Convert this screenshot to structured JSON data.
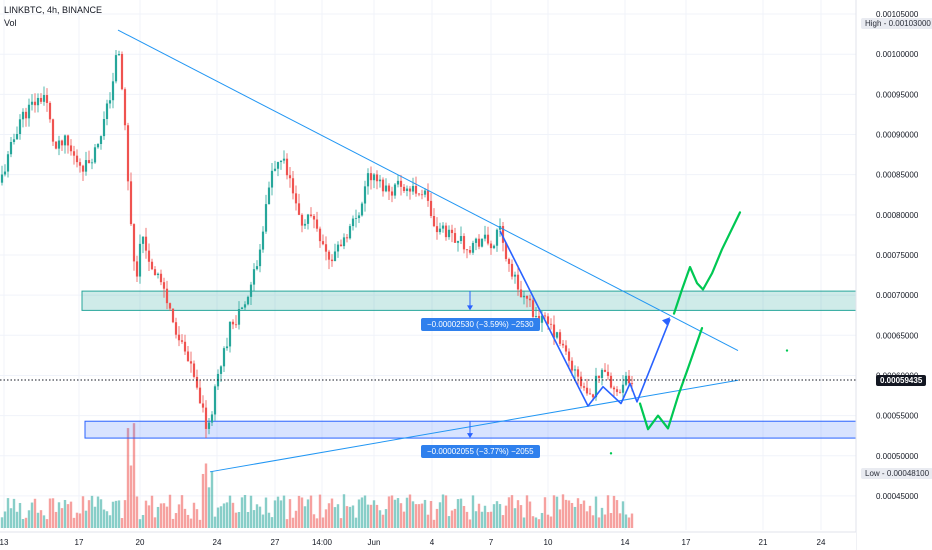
{
  "header": {
    "symbol_line": "LINKBTC, 4h, BINANCE",
    "volume_label": "Vol"
  },
  "price_axis": {
    "ticks": [
      "0.00105000",
      "0.00100000",
      "0.00095000",
      "0.00090000",
      "0.00085000",
      "0.00080000",
      "0.00075000",
      "0.00070000",
      "0.00065000",
      "0.00060000",
      "0.00055000",
      "0.00050000",
      "0.00045000"
    ],
    "high_label": "High",
    "high_value": "0.00103000",
    "low_label": "Low",
    "low_value": "0.00048100",
    "current_value": "0.00059435"
  },
  "time_axis": {
    "labels": [
      "13",
      "17",
      "20",
      "24",
      "27",
      "14:00",
      "Jun",
      "4",
      "7",
      "10",
      "14",
      "17",
      "21",
      "24"
    ]
  },
  "measurements": {
    "upper": "−0.00002530 (−3.59%) −2530",
    "lower": "−0.00002055 (−3.77%) −2055"
  },
  "colors": {
    "up": "#26a69a",
    "down": "#ef5350",
    "trend_line": "#2196f3",
    "resistance_zone": "#26a69a",
    "support_zone": "#2962ff",
    "projection_blue": "#2962ff",
    "projection_green": "#00c853"
  },
  "chart_data": {
    "type": "candlestick",
    "symbol": "LINKBTC",
    "interval": "4h",
    "exchange": "BINANCE",
    "ylim": [
      0.00042,
      0.00106
    ],
    "high": 0.00103,
    "low": 0.000481,
    "last": 0.00059435,
    "price_path": [
      [
        0,
        0.00084
      ],
      [
        8,
        0.00087
      ],
      [
        20,
        0.00092
      ],
      [
        35,
        0.00094
      ],
      [
        45,
        0.00095
      ],
      [
        55,
        0.00088
      ],
      [
        65,
        0.00089
      ],
      [
        75,
        0.00087
      ],
      [
        85,
        0.00086
      ],
      [
        95,
        0.00088
      ],
      [
        105,
        0.00092
      ],
      [
        112,
        0.00096
      ],
      [
        118,
        0.00101
      ],
      [
        124,
        0.00093
      ],
      [
        130,
        0.0008
      ],
      [
        136,
        0.00072
      ],
      [
        142,
        0.00078
      ],
      [
        150,
        0.00074
      ],
      [
        160,
        0.00072
      ],
      [
        170,
        0.00068
      ],
      [
        180,
        0.00064
      ],
      [
        190,
        0.00061
      ],
      [
        200,
        0.00057
      ],
      [
        206,
        0.00054
      ],
      [
        212,
        0.00056
      ],
      [
        220,
        0.00061
      ],
      [
        230,
        0.00066
      ],
      [
        240,
        0.00068
      ],
      [
        250,
        0.0007
      ],
      [
        258,
        0.00075
      ],
      [
        265,
        0.0008
      ],
      [
        272,
        0.00085
      ],
      [
        282,
        0.00087
      ],
      [
        292,
        0.00083
      ],
      [
        300,
        0.00079
      ],
      [
        312,
        0.0008
      ],
      [
        322,
        0.00077
      ],
      [
        330,
        0.00074
      ],
      [
        338,
        0.00076
      ],
      [
        348,
        0.00078
      ],
      [
        358,
        0.0008
      ],
      [
        368,
        0.00085
      ],
      [
        378,
        0.00084
      ],
      [
        390,
        0.00083
      ],
      [
        400,
        0.00084
      ],
      [
        410,
        0.00083
      ],
      [
        420,
        0.00083
      ],
      [
        428,
        0.00082
      ],
      [
        434,
        0.00078
      ],
      [
        445,
        0.00078
      ],
      [
        458,
        0.00077
      ],
      [
        470,
        0.00076
      ],
      [
        482,
        0.00077
      ],
      [
        492,
        0.00076
      ],
      [
        500,
        0.00078
      ],
      [
        508,
        0.00074
      ],
      [
        518,
        0.00071
      ],
      [
        528,
        0.00069
      ],
      [
        540,
        0.00067
      ],
      [
        550,
        0.00066
      ],
      [
        560,
        0.00064
      ],
      [
        572,
        0.00061
      ],
      [
        580,
        0.00059
      ],
      [
        590,
        0.00057
      ],
      [
        598,
        0.0006
      ],
      [
        606,
        0.00061
      ],
      [
        612,
        0.00059
      ],
      [
        620,
        0.00057
      ],
      [
        628,
        0.0006
      ],
      [
        632,
        0.00059
      ]
    ],
    "drawings": {
      "descending_trendline": [
        [
          118,
          0.00103
        ],
        [
          738,
          0.000631
        ]
      ],
      "ascending_trendline": [
        [
          210,
          0.00048
        ],
        [
          738,
          0.000594
        ]
      ],
      "resistance_zone": [
        0.000681,
        0.000705
      ],
      "support_zone": [
        0.000522,
        0.000543
      ],
      "blue_path": [
        [
          500,
          0.00078
        ],
        [
          588,
          0.000562
        ],
        [
          603,
          0.000586
        ],
        [
          621,
          0.000565
        ],
        [
          630,
          0.00059
        ],
        [
          637,
          0.000567
        ],
        [
          670,
          0.00067
        ]
      ],
      "green_path": [
        [
          640,
          0.000565
        ],
        [
          648,
          0.000533
        ],
        [
          658,
          0.00055
        ],
        [
          668,
          0.000534
        ],
        [
          678,
          0.000574
        ],
        [
          688,
          0.000609
        ],
        [
          702,
          0.000659
        ]
      ],
      "green_path_upper": [
        [
          674,
          0.000677
        ],
        [
          682,
          0.000707
        ],
        [
          690,
          0.000735
        ],
        [
          697,
          0.000715
        ],
        [
          703,
          0.000707
        ],
        [
          712,
          0.000727
        ],
        [
          722,
          0.000757
        ],
        [
          740,
          0.000803
        ]
      ]
    }
  }
}
